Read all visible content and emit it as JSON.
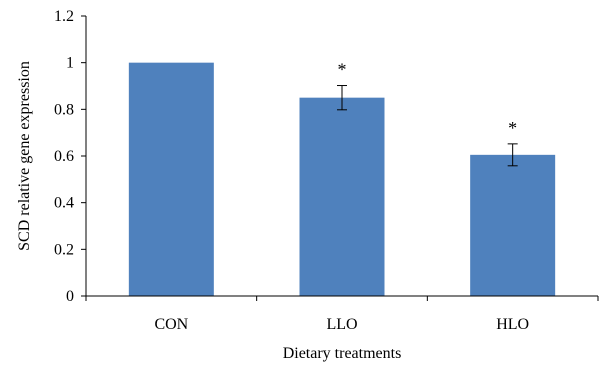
{
  "chart_data": {
    "type": "bar",
    "categories": [
      "CON",
      "LLO",
      "HLO"
    ],
    "values": [
      1.0,
      0.85,
      0.605
    ],
    "error": [
      0.0,
      0.052,
      0.047
    ],
    "annotations": [
      "",
      "*",
      "*"
    ],
    "xlabel": "Dietary treatments",
    "ylabel": "SCD relative gene expression",
    "ylim": [
      0,
      1.2
    ],
    "yticks": [
      "0",
      "0.2",
      "0.4",
      "0.6",
      "0.8",
      "1",
      "1.2"
    ],
    "grid": false,
    "bar_color": "#4f81bd"
  }
}
